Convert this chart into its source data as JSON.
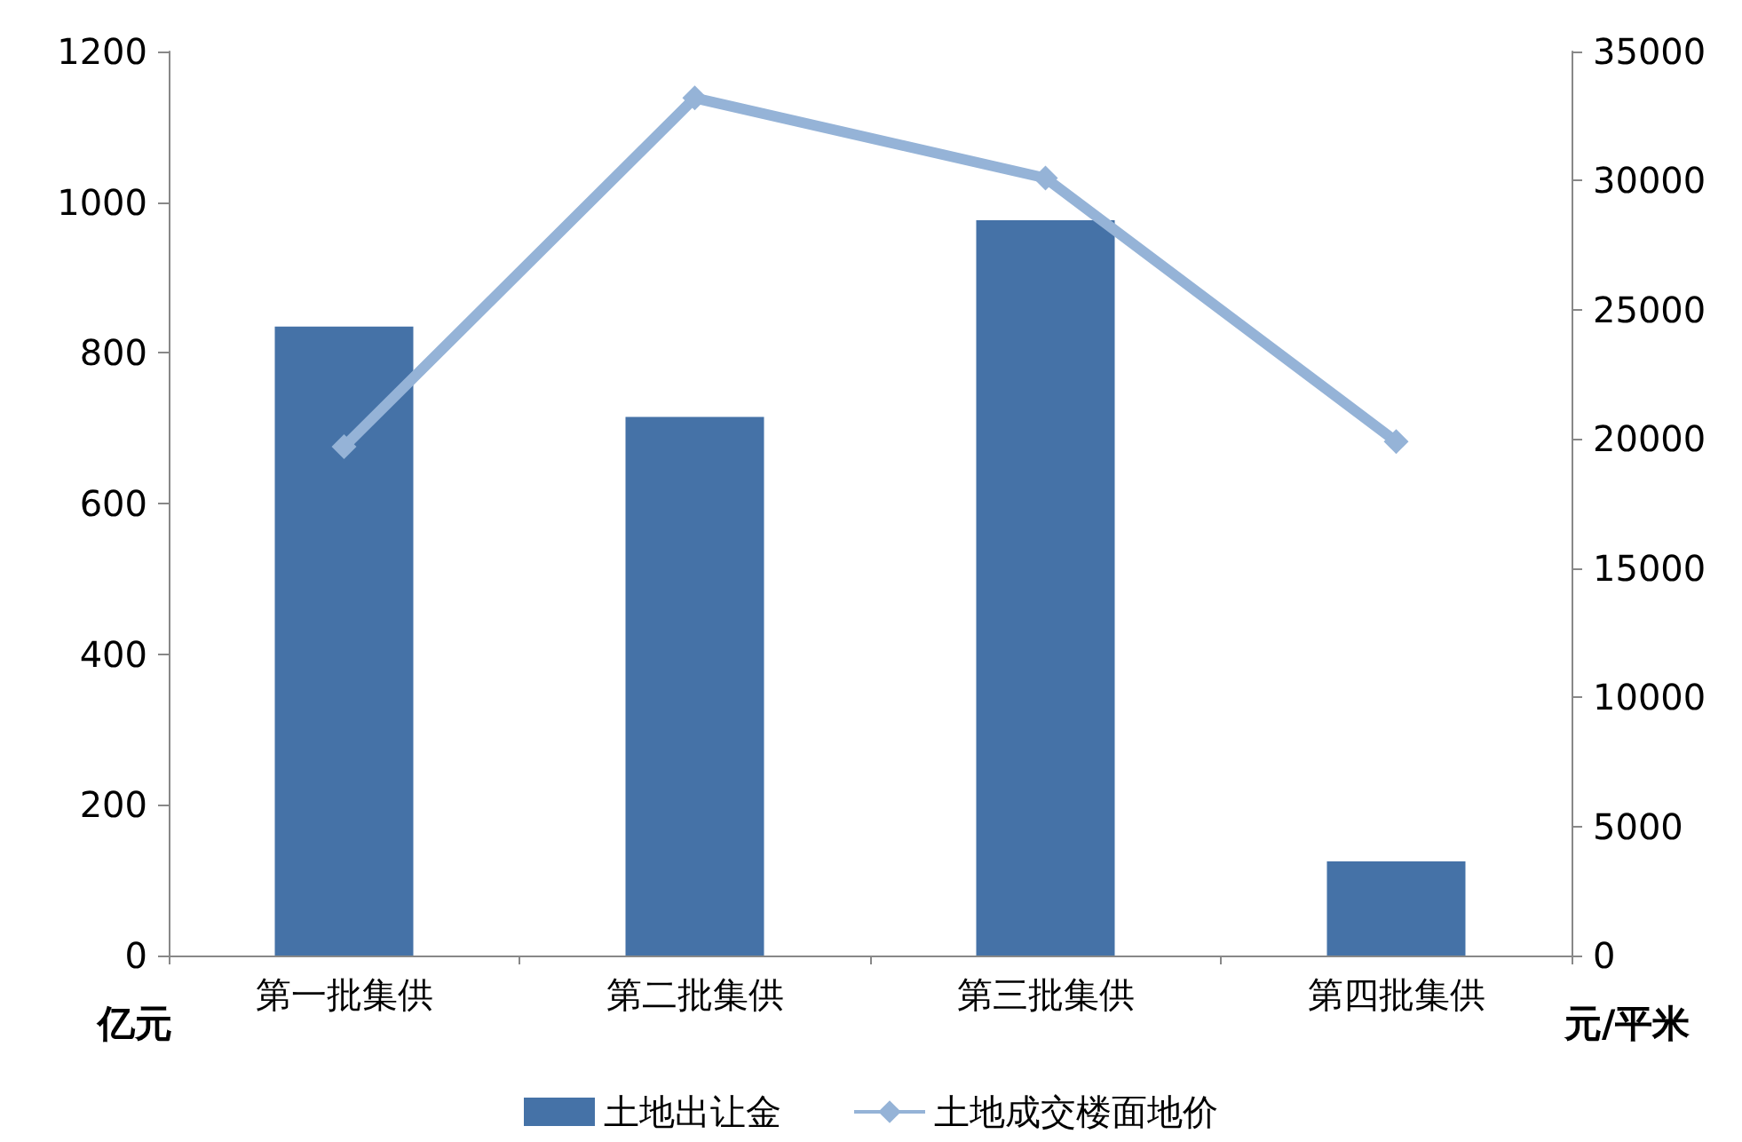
{
  "chart_data": {
    "type": "bar",
    "categories": [
      "第一批集供",
      "第二批集供",
      "第三批集供",
      "第四批集供"
    ],
    "series": [
      {
        "name": "土地出让金",
        "color": "#4572a7",
        "values": [
          835,
          715,
          976,
          125
        ]
      },
      {
        "name": "土地成交楼面地价",
        "type": "line",
        "axis": "y2",
        "color": "#95b3d7",
        "marker": "diamond",
        "values": [
          19700,
          33200,
          30100,
          19900
        ]
      }
    ],
    "ylabel": "亿元",
    "y2label": "元/平米",
    "ylim": [
      0,
      1200
    ],
    "yticks": [
      0,
      200,
      400,
      600,
      800,
      1000,
      1200
    ],
    "y2lim": [
      0,
      35000
    ],
    "y2ticks": [
      0,
      5000,
      10000,
      15000,
      20000,
      25000,
      30000,
      35000
    ],
    "grid": false,
    "legend": "bottom"
  }
}
